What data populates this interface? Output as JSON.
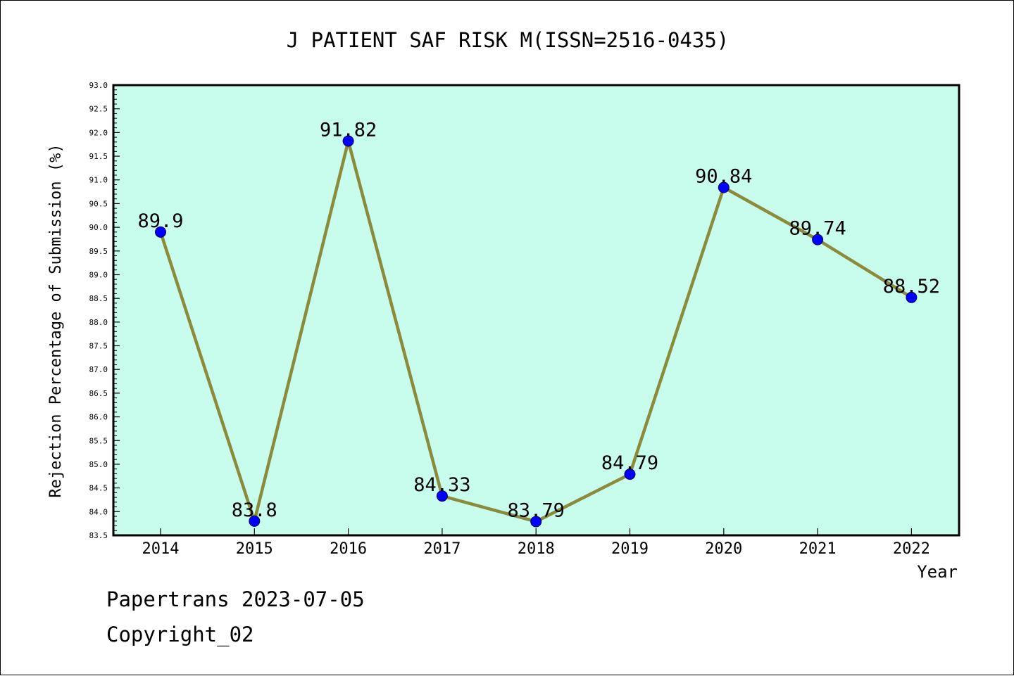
{
  "chart_data": {
    "type": "line",
    "title": "J PATIENT SAF RISK M(ISSN=2516-0435)",
    "xlabel": "Year",
    "ylabel": "Rejection Percentage of Submission (%)",
    "categories": [
      "2014",
      "2015",
      "2016",
      "2017",
      "2018",
      "2019",
      "2020",
      "2021",
      "2022"
    ],
    "series": [
      {
        "values": [
          89.9,
          83.8,
          91.82,
          84.33,
          83.79,
          84.79,
          90.84,
          89.74,
          88.52
        ],
        "labels": [
          "89.9",
          "83.8",
          "91.82",
          "84.33",
          "83.79",
          "84.79",
          "90.84",
          "89.74",
          "88.52"
        ]
      }
    ],
    "ylim": [
      83.5,
      93.0
    ],
    "yticks": [
      "83.5",
      "84.0",
      "84.5",
      "85.0",
      "85.5",
      "86.0",
      "86.5",
      "87.0",
      "87.5",
      "88.0",
      "88.5",
      "89.0",
      "89.5",
      "90.0",
      "90.5",
      "91.0",
      "91.5",
      "92.0",
      "92.5",
      "93.0"
    ],
    "grid": false,
    "colors": {
      "plot_background": "#c8fced",
      "line": "#8b8b3a",
      "marker": "#0000ff"
    }
  },
  "footer": {
    "line1": "Papertrans 2023-07-05",
    "line2": "Copyright_02"
  }
}
